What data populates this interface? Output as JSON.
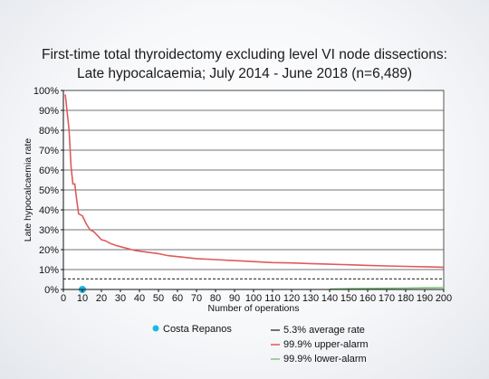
{
  "chart_data": {
    "type": "line",
    "title_line1": "First-time total thyroidectomy excluding level VI node dissections:",
    "title_line2": "Late hypocalcaemia; July 2014 - June 2018 (n=6,489)",
    "xlabel": "Number of operations",
    "ylabel": "Late hypocalcaemia rate",
    "xlim": [
      0,
      200
    ],
    "ylim": [
      0,
      100
    ],
    "x_ticks": [
      0,
      10,
      20,
      30,
      40,
      50,
      60,
      70,
      80,
      90,
      100,
      110,
      120,
      130,
      140,
      150,
      160,
      170,
      180,
      190,
      200
    ],
    "y_ticks": [
      0,
      10,
      20,
      30,
      40,
      50,
      60,
      70,
      80,
      90,
      100
    ],
    "y_tick_suffix": "%",
    "grid": "horizontal",
    "average_rate": 5.3,
    "series": [
      {
        "name": "99.9% upper-alarm",
        "color": "#e05a5a",
        "x": [
          1,
          3,
          4,
          5,
          6,
          7,
          8,
          10,
          12,
          14,
          16,
          18,
          20,
          22,
          25,
          28,
          30,
          34,
          38,
          42,
          46,
          50,
          55,
          60,
          65,
          70,
          80,
          90,
          100,
          110,
          120,
          130,
          140,
          150,
          160,
          170,
          180,
          190,
          200
        ],
        "y": [
          98,
          80,
          62,
          53,
          53,
          45,
          38,
          37,
          33,
          30,
          29,
          27,
          25,
          24.5,
          23,
          22,
          21.5,
          20.5,
          19.5,
          19,
          18.5,
          18,
          17,
          16.5,
          16,
          15.5,
          15,
          14.5,
          14,
          13.5,
          13.3,
          13,
          12.7,
          12.4,
          12.1,
          11.8,
          11.6,
          11.4,
          11.2
        ]
      },
      {
        "name": "99.9% lower-alarm",
        "color": "#7cc47c",
        "x": [
          140,
          150,
          160,
          170,
          180,
          190,
          200
        ],
        "y": [
          0.2,
          0.4,
          0.5,
          0.6,
          0.7,
          0.8,
          0.9
        ]
      }
    ],
    "points": [
      {
        "name": "Costa Repanos",
        "x": 10,
        "y": 0,
        "color": "#1fb8e6"
      }
    ],
    "legend": {
      "point_label": "Costa Repanos",
      "average_label": "5.3% average rate",
      "upper_label": "99.9% upper-alarm",
      "lower_label": "99.9% lower-alarm",
      "average_color": "#444444",
      "upper_color": "#e05a5a",
      "lower_color": "#7cc47c",
      "point_color": "#1fb8e6"
    }
  }
}
